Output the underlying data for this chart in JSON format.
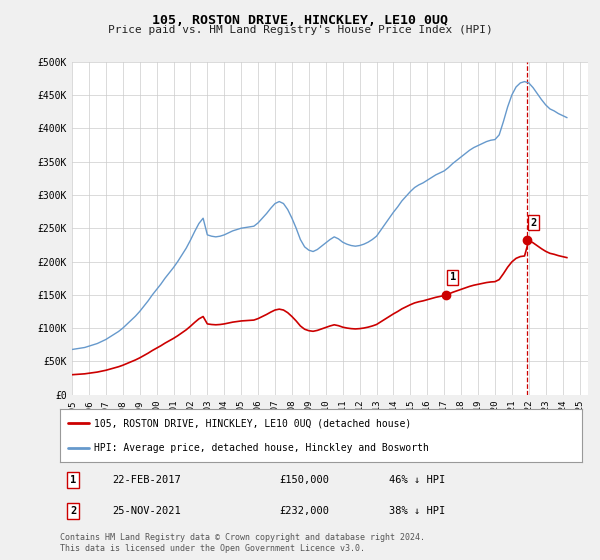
{
  "title": "105, ROSTON DRIVE, HINCKLEY, LE10 0UQ",
  "subtitle": "Price paid vs. HM Land Registry's House Price Index (HPI)",
  "ylim": [
    0,
    500000
  ],
  "xlim_start": 1995.0,
  "xlim_end": 2025.5,
  "yticks": [
    0,
    50000,
    100000,
    150000,
    200000,
    250000,
    300000,
    350000,
    400000,
    450000,
    500000
  ],
  "ytick_labels": [
    "£0",
    "£50K",
    "£100K",
    "£150K",
    "£200K",
    "£250K",
    "£300K",
    "£350K",
    "£400K",
    "£450K",
    "£500K"
  ],
  "xticks": [
    1995,
    1996,
    1997,
    1998,
    1999,
    2000,
    2001,
    2002,
    2003,
    2004,
    2005,
    2006,
    2007,
    2008,
    2009,
    2010,
    2011,
    2012,
    2013,
    2014,
    2015,
    2016,
    2017,
    2018,
    2019,
    2020,
    2021,
    2022,
    2023,
    2024,
    2025
  ],
  "xtick_labels": [
    "1995",
    "1996",
    "1997",
    "1998",
    "1999",
    "2000",
    "2001",
    "2002",
    "2003",
    "2004",
    "2005",
    "2006",
    "2007",
    "2008",
    "2009",
    "2010",
    "2011",
    "2012",
    "2013",
    "2014",
    "2015",
    "2016",
    "2017",
    "2018",
    "2019",
    "2020",
    "2021",
    "2022",
    "2023",
    "2024",
    "2025"
  ],
  "hpi_x": [
    1995.0,
    1995.25,
    1995.5,
    1995.75,
    1996.0,
    1996.25,
    1996.5,
    1996.75,
    1997.0,
    1997.25,
    1997.5,
    1997.75,
    1998.0,
    1998.25,
    1998.5,
    1998.75,
    1999.0,
    1999.25,
    1999.5,
    1999.75,
    2000.0,
    2000.25,
    2000.5,
    2000.75,
    2001.0,
    2001.25,
    2001.5,
    2001.75,
    2002.0,
    2002.25,
    2002.5,
    2002.75,
    2003.0,
    2003.25,
    2003.5,
    2003.75,
    2004.0,
    2004.25,
    2004.5,
    2004.75,
    2005.0,
    2005.25,
    2005.5,
    2005.75,
    2006.0,
    2006.25,
    2006.5,
    2006.75,
    2007.0,
    2007.25,
    2007.5,
    2007.75,
    2008.0,
    2008.25,
    2008.5,
    2008.75,
    2009.0,
    2009.25,
    2009.5,
    2009.75,
    2010.0,
    2010.25,
    2010.5,
    2010.75,
    2011.0,
    2011.25,
    2011.5,
    2011.75,
    2012.0,
    2012.25,
    2012.5,
    2012.75,
    2013.0,
    2013.25,
    2013.5,
    2013.75,
    2014.0,
    2014.25,
    2014.5,
    2014.75,
    2015.0,
    2015.25,
    2015.5,
    2015.75,
    2016.0,
    2016.25,
    2016.5,
    2016.75,
    2017.0,
    2017.25,
    2017.5,
    2017.75,
    2018.0,
    2018.25,
    2018.5,
    2018.75,
    2019.0,
    2019.25,
    2019.5,
    2019.75,
    2020.0,
    2020.25,
    2020.5,
    2020.75,
    2021.0,
    2021.25,
    2021.5,
    2021.75,
    2022.0,
    2022.25,
    2022.5,
    2022.75,
    2023.0,
    2023.25,
    2023.5,
    2023.75,
    2024.0,
    2024.25
  ],
  "hpi_y": [
    68000,
    69000,
    70000,
    71000,
    73000,
    75000,
    77000,
    80000,
    83000,
    87000,
    91000,
    95000,
    100000,
    106000,
    112000,
    118000,
    125000,
    133000,
    141000,
    150000,
    158000,
    166000,
    175000,
    183000,
    191000,
    200000,
    210000,
    220000,
    232000,
    245000,
    257000,
    265000,
    240000,
    238000,
    237000,
    238000,
    240000,
    243000,
    246000,
    248000,
    250000,
    251000,
    252000,
    253000,
    258000,
    265000,
    272000,
    280000,
    287000,
    290000,
    287000,
    278000,
    265000,
    250000,
    233000,
    222000,
    217000,
    215000,
    218000,
    223000,
    228000,
    233000,
    237000,
    234000,
    229000,
    226000,
    224000,
    223000,
    224000,
    226000,
    229000,
    233000,
    238000,
    247000,
    256000,
    265000,
    274000,
    282000,
    291000,
    298000,
    305000,
    311000,
    315000,
    318000,
    322000,
    326000,
    330000,
    333000,
    336000,
    341000,
    347000,
    352000,
    357000,
    362000,
    367000,
    371000,
    374000,
    377000,
    380000,
    382000,
    383000,
    390000,
    410000,
    432000,
    450000,
    462000,
    468000,
    470000,
    468000,
    461000,
    452000,
    443000,
    435000,
    429000,
    426000,
    422000,
    419000,
    416000
  ],
  "sale1_x": 2017.12,
  "sale1_y": 150000,
  "sale1_label": "1",
  "sale2_x": 2021.9,
  "sale2_y": 232000,
  "sale2_label": "2",
  "vline_x": 2021.9,
  "property_color": "#cc0000",
  "hpi_color": "#6699cc",
  "vline_color": "#cc0000",
  "legend_property": "105, ROSTON DRIVE, HINCKLEY, LE10 0UQ (detached house)",
  "legend_hpi": "HPI: Average price, detached house, Hinckley and Bosworth",
  "annotation1_num": "1",
  "annotation1_date": "22-FEB-2017",
  "annotation1_price": "£150,000",
  "annotation1_hpi": "46% ↓ HPI",
  "annotation2_num": "2",
  "annotation2_date": "25-NOV-2021",
  "annotation2_price": "£232,000",
  "annotation2_hpi": "38% ↓ HPI",
  "footer": "Contains HM Land Registry data © Crown copyright and database right 2024.\nThis data is licensed under the Open Government Licence v3.0.",
  "bg_color": "#f0f0f0",
  "plot_bg_color": "#ffffff",
  "grid_color": "#cccccc"
}
